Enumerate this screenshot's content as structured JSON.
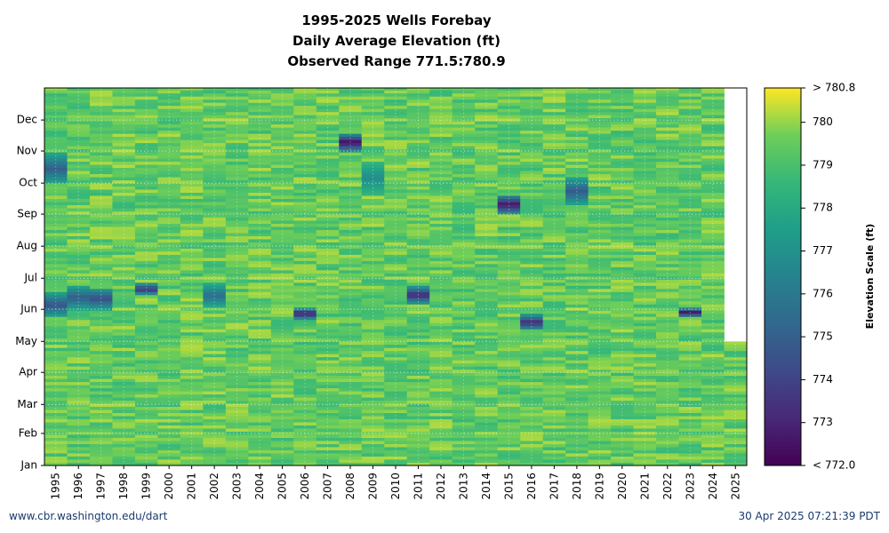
{
  "chart_data": {
    "type": "heatmap",
    "title_lines": [
      "1995-2025 Wells Forebay",
      "Daily Average Elevation (ft)",
      "Observed Range 771.5:780.9"
    ],
    "x_categories": [
      "1995",
      "1996",
      "1997",
      "1998",
      "1999",
      "2000",
      "2001",
      "2002",
      "2003",
      "2004",
      "2005",
      "2006",
      "2007",
      "2008",
      "2009",
      "2010",
      "2011",
      "2012",
      "2013",
      "2014",
      "2015",
      "2016",
      "2017",
      "2018",
      "2019",
      "2020",
      "2021",
      "2022",
      "2023",
      "2024",
      "2025"
    ],
    "y_month_ticks": [
      "Jan",
      "Feb",
      "Mar",
      "Apr",
      "May",
      "Jun",
      "Jul",
      "Aug",
      "Sep",
      "Oct",
      "Nov",
      "Dec"
    ],
    "colorbar": {
      "label": "Elevation Scale (ft)",
      "min": 772.0,
      "max": 780.8,
      "min_label": "< 772.0",
      "max_label": "> 780.8",
      "ticks": [
        773,
        774,
        775,
        776,
        777,
        778,
        779,
        780
      ],
      "colormap": "viridis"
    },
    "grid": true,
    "data_end_2025": "Apr 30",
    "typical_value": 779.5,
    "low_events": [
      {
        "year": "1995",
        "from": "May 25",
        "to": "Jun 15",
        "min": 774.5
      },
      {
        "year": "1995",
        "from": "Sep 30",
        "to": "Oct 28",
        "min": 775.0
      },
      {
        "year": "1996",
        "from": "Jun 1",
        "to": "Jun 22",
        "min": 774.8
      },
      {
        "year": "1997",
        "from": "Jun 1",
        "to": "Jun 20",
        "min": 774.2
      },
      {
        "year": "1999",
        "from": "Jun 15",
        "to": "Jun 24",
        "min": 773.0
      },
      {
        "year": "2002",
        "from": "Jun 3",
        "to": "Jun 24",
        "min": 775.5
      },
      {
        "year": "2006",
        "from": "May 23",
        "to": "May 31",
        "min": 772.0
      },
      {
        "year": "2008",
        "from": "Nov 1",
        "to": "Nov 16",
        "min": 772.0
      },
      {
        "year": "2009",
        "from": "Sep 20",
        "to": "Oct 20",
        "min": 776.8
      },
      {
        "year": "2011",
        "from": "Jun 7",
        "to": "Jun 21",
        "min": 772.8
      },
      {
        "year": "2015",
        "from": "Sep 1",
        "to": "Sep 18",
        "min": 772.3
      },
      {
        "year": "2016",
        "from": "May 12",
        "to": "May 25",
        "min": 773.0
      },
      {
        "year": "2018",
        "from": "Sep 10",
        "to": "Oct 5",
        "min": 774.8
      },
      {
        "year": "2023",
        "from": "May 24",
        "to": "Jun 1",
        "min": 772.2
      }
    ]
  },
  "footer": {
    "url": "www.cbr.washington.edu/dart",
    "timestamp": "30 Apr 2025 07:21:39 PDT"
  }
}
